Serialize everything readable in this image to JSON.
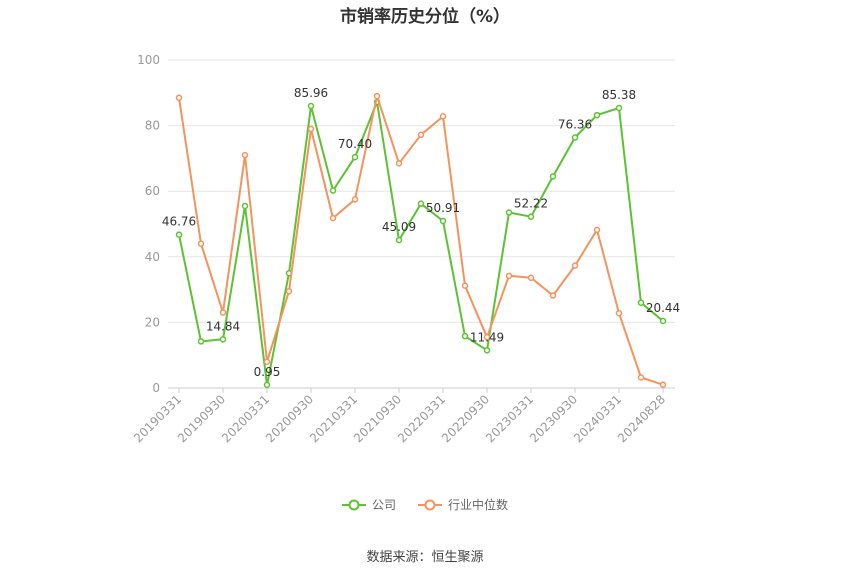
{
  "chart_data": {
    "type": "line",
    "title": "市销率历史分位（%）",
    "source": "数据来源：恒生聚源",
    "ylim": [
      0,
      100
    ],
    "yticks": [
      0,
      20,
      40,
      60,
      80,
      100
    ],
    "categories": [
      "20190331",
      "20190630",
      "20190930",
      "20191231",
      "20200331",
      "20200630",
      "20200930",
      "20201231",
      "20210331",
      "20210630",
      "20210930",
      "20211231",
      "20220331",
      "20220630",
      "20220930",
      "20221231",
      "20230331",
      "20230630",
      "20230930",
      "20231231",
      "20240331",
      "20240630",
      "20240828"
    ],
    "xtick_labels": [
      "20190331",
      "",
      "20190930",
      "",
      "20200331",
      "",
      "20200930",
      "",
      "20210331",
      "",
      "20210930",
      "",
      "20220331",
      "",
      "20220930",
      "",
      "20230331",
      "",
      "20230930",
      "",
      "20240331",
      "",
      "20240828"
    ],
    "grid": true,
    "legend_position": "bottom",
    "series": [
      {
        "name": "公司",
        "color": "#5cc234",
        "values": [
          46.76,
          14.2,
          14.84,
          55.5,
          0.95,
          35.0,
          85.96,
          60.2,
          70.4,
          87.2,
          45.09,
          56.2,
          50.91,
          15.8,
          11.49,
          53.5,
          52.22,
          64.5,
          76.36,
          83.2,
          85.38,
          26.0,
          20.44
        ]
      },
      {
        "name": "行业中位数",
        "color": "#f4935d",
        "values": [
          88.5,
          44.0,
          23.0,
          71.0,
          8.0,
          29.5,
          79.0,
          51.8,
          57.5,
          89.0,
          68.5,
          77.2,
          82.8,
          31.2,
          15.5,
          34.2,
          33.6,
          28.2,
          37.3,
          48.2,
          22.8,
          3.2,
          1.0
        ]
      }
    ],
    "data_labels": [
      {
        "series": 0,
        "index": 0,
        "text": "46.76",
        "pos": "above"
      },
      {
        "series": 0,
        "index": 2,
        "text": "14.84",
        "pos": "above"
      },
      {
        "series": 0,
        "index": 4,
        "text": "0.95",
        "pos": "above"
      },
      {
        "series": 0,
        "index": 6,
        "text": "85.96",
        "pos": "above"
      },
      {
        "series": 0,
        "index": 8,
        "text": "70.40",
        "pos": "above"
      },
      {
        "series": 0,
        "index": 10,
        "text": "45.09",
        "pos": "above"
      },
      {
        "series": 0,
        "index": 12,
        "text": "50.91",
        "pos": "above"
      },
      {
        "series": 0,
        "index": 14,
        "text": "11.49",
        "pos": "above"
      },
      {
        "series": 0,
        "index": 16,
        "text": "52.22",
        "pos": "above"
      },
      {
        "series": 0,
        "index": 18,
        "text": "76.36",
        "pos": "above"
      },
      {
        "series": 0,
        "index": 20,
        "text": "85.38",
        "pos": "above"
      },
      {
        "series": 0,
        "index": 22,
        "text": "20.44",
        "pos": "above"
      }
    ]
  }
}
